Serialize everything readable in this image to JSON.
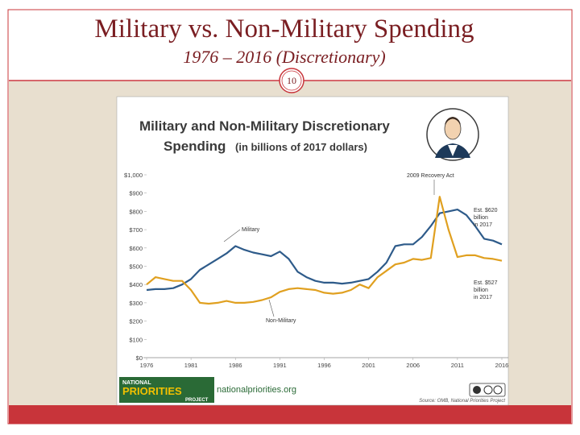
{
  "slide": {
    "title": "Military vs. Non-Military Spending",
    "subtitle": "1976 – 2016 (Discretionary)",
    "page_number": "10"
  },
  "chart_data": {
    "type": "line",
    "title": "Military and Non-Military Discretionary",
    "subtitle": "Spending",
    "unit_note": "(in billions of 2017 dollars)",
    "x": [
      1976,
      1977,
      1978,
      1979,
      1980,
      1981,
      1982,
      1983,
      1984,
      1985,
      1986,
      1987,
      1988,
      1989,
      1990,
      1991,
      1992,
      1993,
      1994,
      1995,
      1996,
      1997,
      1998,
      1999,
      2000,
      2001,
      2002,
      2003,
      2004,
      2005,
      2006,
      2007,
      2008,
      2009,
      2010,
      2011,
      2012,
      2013,
      2014,
      2015,
      2016
    ],
    "series": [
      {
        "name": "Military",
        "color": "#2e5b8a",
        "values": [
          370,
          375,
          375,
          380,
          400,
          430,
          480,
          510,
          540,
          570,
          610,
          590,
          575,
          565,
          555,
          580,
          540,
          470,
          440,
          420,
          410,
          410,
          405,
          410,
          420,
          430,
          470,
          520,
          610,
          620,
          620,
          660,
          720,
          790,
          800,
          810,
          780,
          720,
          650,
          640,
          620
        ]
      },
      {
        "name": "Non-Military",
        "color": "#e0a020",
        "values": [
          400,
          440,
          430,
          420,
          420,
          370,
          300,
          295,
          300,
          310,
          300,
          300,
          305,
          315,
          330,
          360,
          375,
          380,
          375,
          370,
          355,
          350,
          355,
          370,
          400,
          380,
          440,
          475,
          510,
          520,
          540,
          535,
          545,
          880,
          700,
          550,
          560,
          560,
          545,
          540,
          530
        ]
      }
    ],
    "xlim": [
      1976,
      2016
    ],
    "xticks": [
      1976,
      1981,
      1986,
      1991,
      1996,
      2001,
      2006,
      2011,
      2016
    ],
    "ylim": [
      0,
      1000
    ],
    "yticks": [
      {
        "value": 0,
        "label": "$0"
      },
      {
        "value": 100,
        "label": "$100"
      },
      {
        "value": 200,
        "label": "$200"
      },
      {
        "value": 300,
        "label": "$300"
      },
      {
        "value": 400,
        "label": "$400"
      },
      {
        "value": 500,
        "label": "$500"
      },
      {
        "value": 600,
        "label": "$600"
      },
      {
        "value": 700,
        "label": "$700"
      },
      {
        "value": 800,
        "label": "$800"
      },
      {
        "value": 900,
        "label": "$900"
      },
      {
        "value": 1000,
        "label": "$1,000"
      }
    ],
    "grid": false,
    "annotations": [
      {
        "text": [
          "2009 Recovery Act"
        ]
      },
      {
        "text": [
          "Est. $620",
          "billion",
          "in 2017"
        ]
      },
      {
        "text": [
          "Est. $527",
          "billion",
          "in 2017"
        ]
      }
    ],
    "logo": [
      "NATIONAL",
      "PRIORITIES",
      "PROJECT"
    ],
    "website": "nationalpriorities.org",
    "source": "Source: OMB, National Priorities Project"
  }
}
